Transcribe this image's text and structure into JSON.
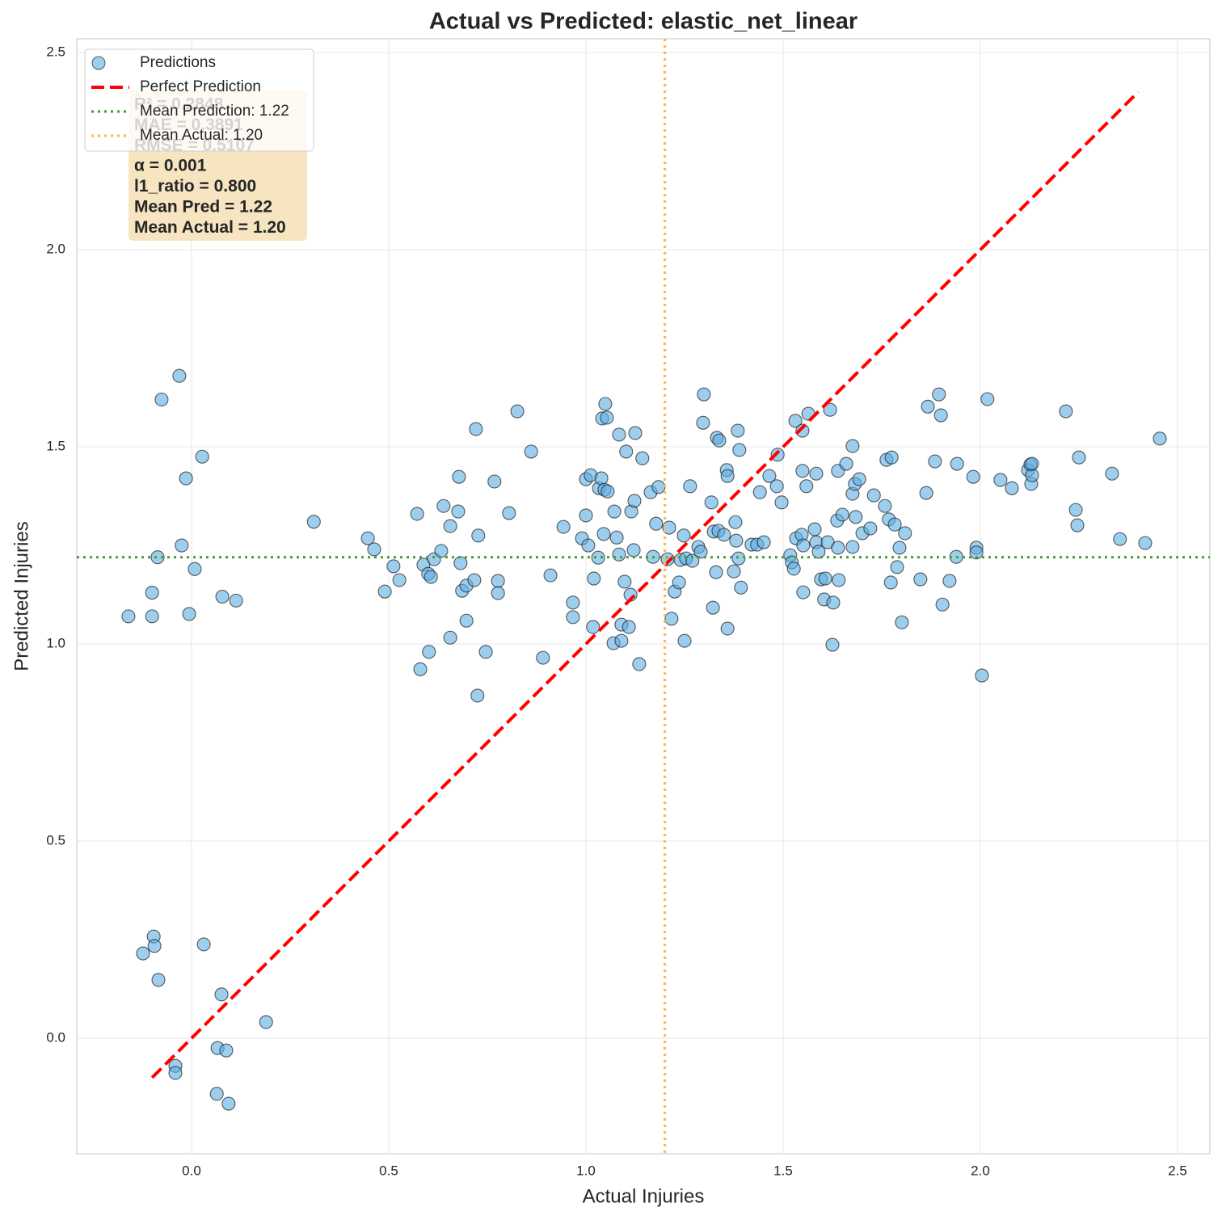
{
  "chart_data": {
    "type": "scatter",
    "title": "Actual vs Predicted: elastic_net_linear",
    "xlabel": "Actual Injuries",
    "ylabel": "Predicted Injuries",
    "xlim": [
      -0.291,
      2.582
    ],
    "ylim": [
      -0.293,
      2.535
    ],
    "xticks": [
      {
        "value": 0,
        "label": "0.0"
      },
      0.5,
      {
        "value": 1,
        "label": "1.0"
      },
      1.5,
      {
        "value": 2,
        "label": "2.0"
      },
      2.5
    ],
    "yticks": [
      {
        "value": 0,
        "label": "0.0"
      },
      0.5,
      {
        "value": 1,
        "label": "1.0"
      },
      1.5,
      {
        "value": 2,
        "label": "2.0"
      },
      2.5
    ],
    "grid": true,
    "legend": "upper left",
    "series": [
      {
        "name": "Predictions",
        "color": "#5dade2",
        "x": [
          -0.16,
          -0.076,
          -0.031,
          -0.1,
          -0.1,
          -0.086,
          -0.025,
          -0.014,
          0.027,
          0.008,
          -0.006,
          0.078,
          0.113,
          0.31,
          -0.123,
          -0.096,
          -0.094,
          -0.084,
          0.031,
          0.076,
          0.189,
          -0.041,
          -0.041,
          0.066,
          0.088,
          0.064,
          0.094,
          0.447,
          0.463,
          0.49,
          0.512,
          0.527,
          0.572,
          0.58,
          0.602,
          0.588,
          0.6,
          0.607,
          0.615,
          0.633,
          0.639,
          0.656,
          0.656,
          0.676,
          0.678,
          0.682,
          0.686,
          0.697,
          0.697,
          0.717,
          0.721,
          0.725,
          0.727,
          0.746,
          0.768,
          0.777,
          0.777,
          0.805,
          0.826,
          0.861,
          0.891,
          0.91,
          0.943,
          0.967,
          0.967,
          0.99,
          1.0,
          1.0,
          1.012,
          1.006,
          1.018,
          1.02,
          1.031,
          1.033,
          1.039,
          1.041,
          1.049,
          1.053,
          1.047,
          1.055,
          1.045,
          1.07,
          1.072,
          1.078,
          1.084,
          1.084,
          1.09,
          1.09,
          1.098,
          1.102,
          1.109,
          1.113,
          1.115,
          1.123,
          1.121,
          1.125,
          1.135,
          1.143,
          1.164,
          1.17,
          1.178,
          1.184,
          1.207,
          1.211,
          1.217,
          1.225,
          1.236,
          1.24,
          1.248,
          1.25,
          1.254,
          1.264,
          1.27,
          1.285,
          1.291,
          1.297,
          1.299,
          1.318,
          1.322,
          1.324,
          1.33,
          1.332,
          1.338,
          1.336,
          1.35,
          1.357,
          1.359,
          1.359,
          1.375,
          1.379,
          1.381,
          1.385,
          1.387,
          1.389,
          1.393,
          1.42,
          1.434,
          1.441,
          1.451,
          1.465,
          1.484,
          1.486,
          1.496,
          1.518,
          1.522,
          1.527,
          1.531,
          1.533,
          1.547,
          1.549,
          1.549,
          1.551,
          1.551,
          1.559,
          1.564,
          1.58,
          1.584,
          1.584,
          1.59,
          1.596,
          1.604,
          1.607,
          1.613,
          1.619,
          1.625,
          1.627,
          1.637,
          1.639,
          1.639,
          1.641,
          1.65,
          1.66,
          1.676,
          1.676,
          1.676,
          1.682,
          1.684,
          1.693,
          1.701,
          1.721,
          1.73,
          1.758,
          1.762,
          1.768,
          1.773,
          1.775,
          1.783,
          1.789,
          1.795,
          1.801,
          1.809,
          1.848,
          1.863,
          1.867,
          1.885,
          1.895,
          1.9,
          1.904,
          1.922,
          1.939,
          1.941,
          1.982,
          1.99,
          1.99,
          2.004,
          2.018,
          2.051,
          2.08,
          2.121,
          2.127,
          2.129,
          2.131,
          2.131,
          2.217,
          2.242,
          2.246,
          2.25,
          2.334,
          2.354,
          2.418,
          2.455
        ],
        "values": [
          1.07,
          1.62,
          1.68,
          1.13,
          1.07,
          1.22,
          1.25,
          1.42,
          1.475,
          1.19,
          1.076,
          1.12,
          1.11,
          1.31,
          0.215,
          0.258,
          0.234,
          0.148,
          0.238,
          0.111,
          0.041,
          -0.07,
          -0.088,
          -0.025,
          -0.031,
          -0.141,
          -0.166,
          1.268,
          1.24,
          1.133,
          1.197,
          1.162,
          1.33,
          0.936,
          0.98,
          1.201,
          1.178,
          1.17,
          1.215,
          1.236,
          1.35,
          1.016,
          1.299,
          1.336,
          1.424,
          1.205,
          1.135,
          1.059,
          1.148,
          1.162,
          1.545,
          0.869,
          1.275,
          0.98,
          1.412,
          1.16,
          1.129,
          1.332,
          1.59,
          1.488,
          0.965,
          1.174,
          1.297,
          1.105,
          1.068,
          1.268,
          1.326,
          1.418,
          1.428,
          1.25,
          1.043,
          1.166,
          1.219,
          1.395,
          1.42,
          1.572,
          1.609,
          1.574,
          1.391,
          1.387,
          1.279,
          1.002,
          1.336,
          1.27,
          1.227,
          1.531,
          1.049,
          1.008,
          1.158,
          1.488,
          1.043,
          1.125,
          1.336,
          1.363,
          1.238,
          1.535,
          0.949,
          1.471,
          1.385,
          1.221,
          1.305,
          1.398,
          1.215,
          1.295,
          1.064,
          1.133,
          1.156,
          1.213,
          1.275,
          1.008,
          1.217,
          1.4,
          1.211,
          1.246,
          1.234,
          1.561,
          1.633,
          1.359,
          1.092,
          1.285,
          1.182,
          1.523,
          1.516,
          1.287,
          1.277,
          1.441,
          1.426,
          1.039,
          1.184,
          1.309,
          1.262,
          1.541,
          1.217,
          1.492,
          1.143,
          1.252,
          1.252,
          1.385,
          1.258,
          1.426,
          1.4,
          1.48,
          1.359,
          1.225,
          1.207,
          1.191,
          1.566,
          1.268,
          1.277,
          1.439,
          1.541,
          1.25,
          1.131,
          1.4,
          1.584,
          1.291,
          1.432,
          1.258,
          1.234,
          1.164,
          1.113,
          1.166,
          1.258,
          1.594,
          0.998,
          1.105,
          1.313,
          1.439,
          1.244,
          1.162,
          1.328,
          1.457,
          1.246,
          1.502,
          1.381,
          1.406,
          1.322,
          1.418,
          1.281,
          1.293,
          1.377,
          1.35,
          1.467,
          1.316,
          1.156,
          1.473,
          1.303,
          1.195,
          1.244,
          1.055,
          1.281,
          1.164,
          1.383,
          1.602,
          1.463,
          1.633,
          1.58,
          1.1,
          1.16,
          1.221,
          1.457,
          1.424,
          1.244,
          1.232,
          0.92,
          1.621,
          1.416,
          1.395,
          1.441,
          1.455,
          1.406,
          1.428,
          1.457,
          1.59,
          1.34,
          1.301,
          1.473,
          1.432,
          1.266,
          1.256,
          1.521
        ]
      }
    ],
    "perfect_line": {
      "name": "Perfect Prediction",
      "color": "#ff0000",
      "x": [
        -0.1,
        2.4
      ],
      "values": [
        -0.1,
        2.4
      ]
    },
    "mean_prediction": {
      "name": "Mean Prediction: 1.22",
      "color": "#4a9e3f",
      "value": 1.22
    },
    "mean_actual": {
      "name": "Mean Actual: 1.20",
      "color": "#ffb84d",
      "value": 1.2
    },
    "stats": [
      "R² = 0.2848",
      "MAE = 0.3891",
      "RMSE = 0.5107",
      "α = 0.001",
      "l1_ratio = 0.800",
      "Mean Pred = 1.22",
      "Mean Actual = 1.20"
    ]
  }
}
